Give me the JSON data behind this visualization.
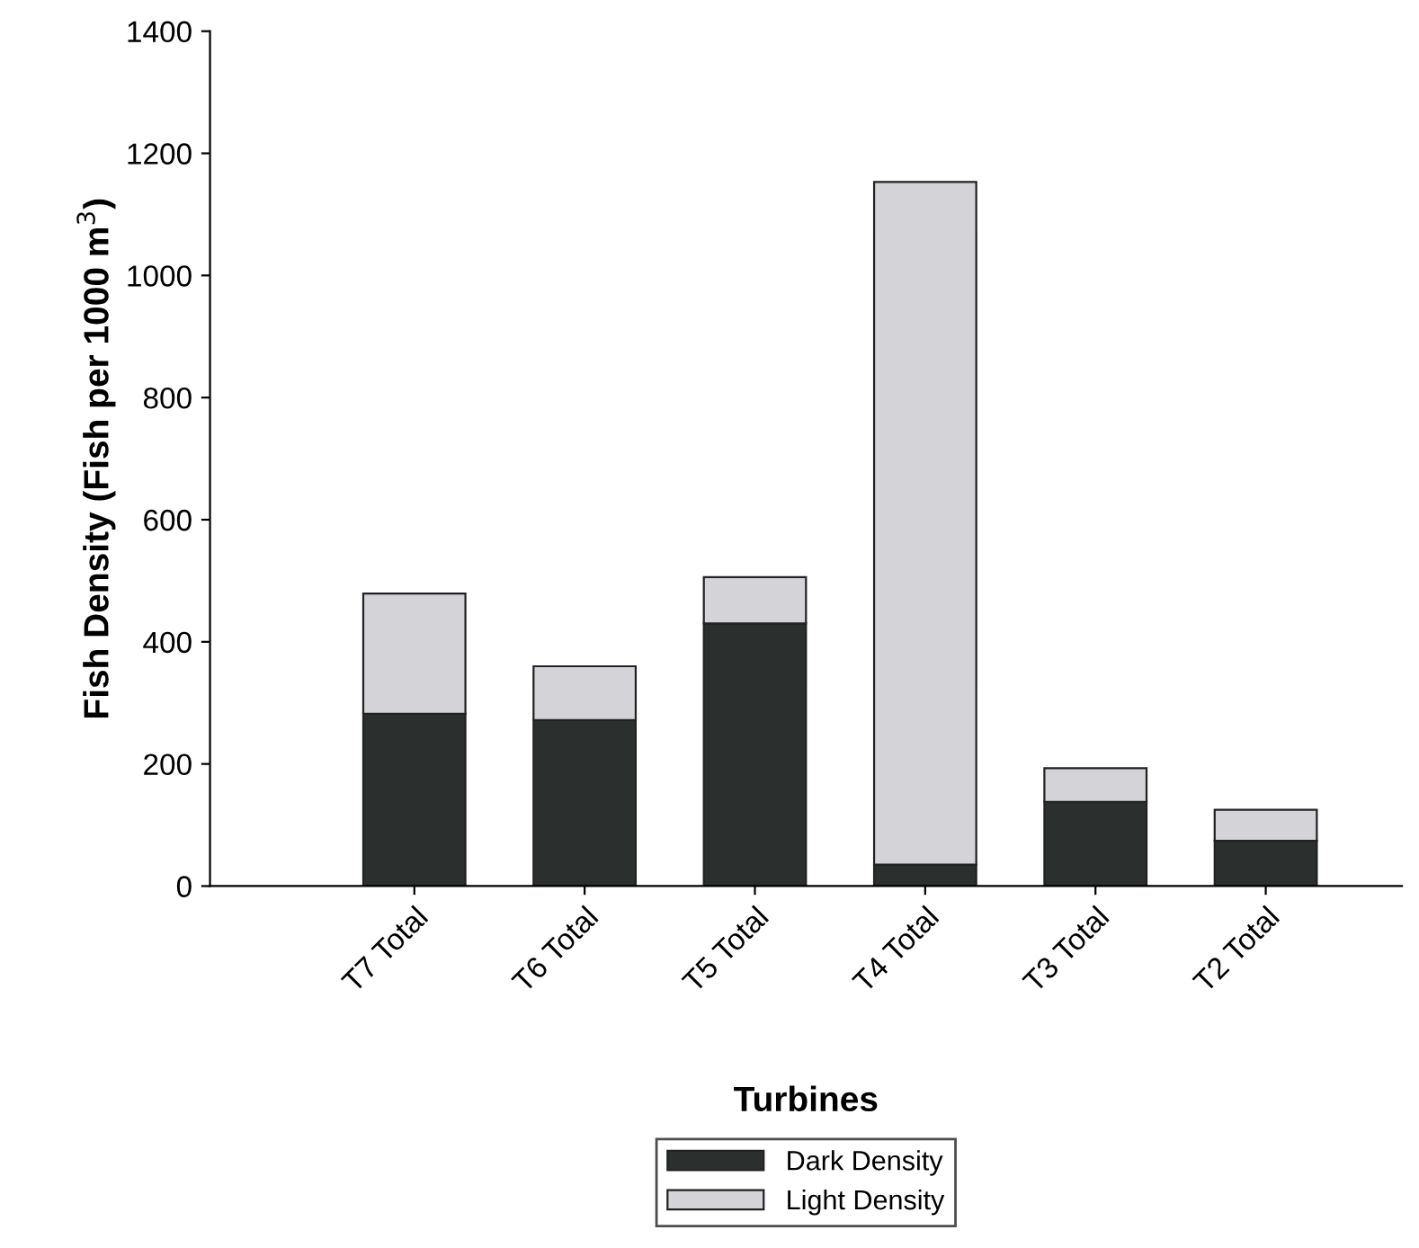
{
  "chart_data": {
    "type": "bar",
    "stacked": true,
    "xlabel": "Turbines",
    "ylabel": "Fish Density (Fish per 1000 m$^{3}$)",
    "categories": [
      "T7 Total",
      "T6 Total",
      "T5 Total",
      "T4 Total",
      "T3 Total",
      "T2 Total"
    ],
    "series": [
      {
        "name": "Dark Density",
        "color": "#2b302e",
        "values": [
          282,
          272,
          430,
          35,
          138,
          74
        ]
      },
      {
        "name": "Light Density",
        "color": "#d3d3d8",
        "values": [
          197,
          88,
          76,
          1118,
          55,
          51
        ]
      }
    ],
    "ylim": [
      0,
      1400
    ],
    "yticks": [
      0,
      200,
      400,
      600,
      800,
      1000,
      1200,
      1400
    ],
    "grid": false,
    "legend": "bottom"
  }
}
